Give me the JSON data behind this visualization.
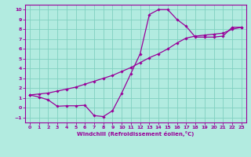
{
  "title": "",
  "xlabel": "Windchill (Refroidissement éolien,°C)",
  "ylabel": "",
  "bg_color": "#b2ebe0",
  "line_color": "#990099",
  "grid_color": "#80d0c0",
  "xlim": [
    -0.5,
    23.5
  ],
  "ylim": [
    -1.5,
    10.5
  ],
  "xticks": [
    0,
    1,
    2,
    3,
    4,
    5,
    6,
    7,
    8,
    9,
    10,
    11,
    12,
    13,
    14,
    15,
    16,
    17,
    18,
    19,
    20,
    21,
    22,
    23
  ],
  "yticks": [
    -1,
    0,
    1,
    2,
    3,
    4,
    5,
    6,
    7,
    8,
    9,
    10
  ],
  "curve1_x": [
    0,
    1,
    2,
    3,
    4,
    5,
    6,
    7,
    8,
    9,
    10,
    11,
    12,
    13,
    14,
    15,
    16,
    17,
    18,
    19,
    20,
    21,
    22,
    23
  ],
  "curve1_y": [
    1.3,
    1.1,
    0.8,
    0.15,
    0.2,
    0.2,
    0.25,
    -0.8,
    -0.9,
    -0.3,
    1.5,
    3.5,
    5.5,
    9.5,
    10.0,
    10.0,
    9.0,
    8.3,
    7.2,
    7.2,
    7.2,
    7.3,
    8.2,
    8.2
  ],
  "curve2_x": [
    0,
    1,
    2,
    3,
    4,
    5,
    6,
    7,
    8,
    9,
    10,
    11,
    12,
    13,
    14,
    15,
    16,
    17,
    18,
    19,
    20,
    21,
    22,
    23
  ],
  "curve2_y": [
    1.3,
    1.4,
    1.5,
    1.7,
    1.9,
    2.1,
    2.4,
    2.7,
    3.0,
    3.3,
    3.7,
    4.1,
    4.6,
    5.1,
    5.5,
    6.0,
    6.6,
    7.1,
    7.3,
    7.4,
    7.5,
    7.6,
    8.0,
    8.2
  ]
}
